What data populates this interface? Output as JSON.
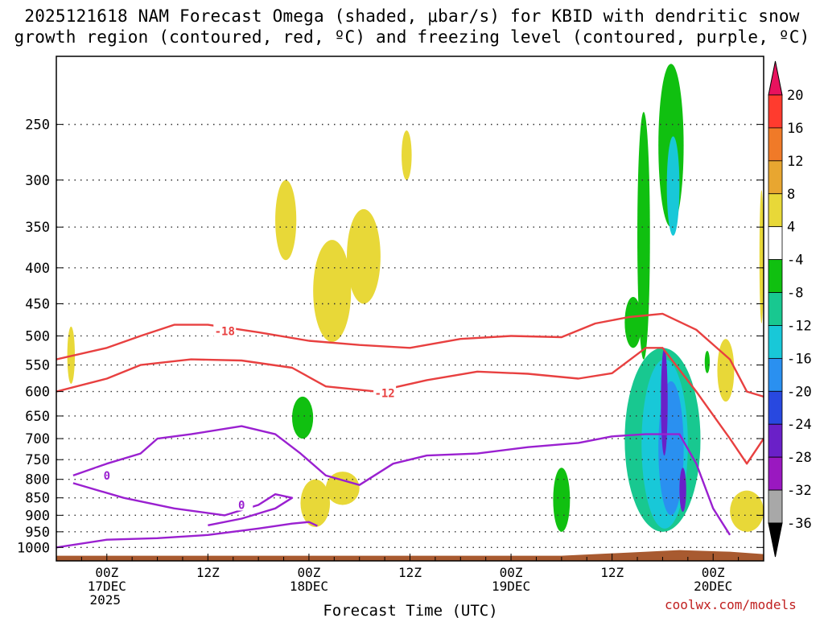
{
  "title_line1": "2025121618 NAM Forecast Omega (shaded, μbar/s) for KBID with dendritic snow",
  "title_line2": "growth region (contoured, red, ºC) and freezing level (contoured, purple, ºC)",
  "credit": "coolwx.com/models",
  "chart_data": {
    "type": "heatmap",
    "xlabel": "Forecast Time (UTC)",
    "ylabel": "",
    "x_ticks": [
      {
        "label": [
          "00Z",
          "17DEC",
          "2025"
        ],
        "hour": 6
      },
      {
        "label": [
          "12Z"
        ],
        "hour": 18
      },
      {
        "label": [
          "00Z",
          "18DEC"
        ],
        "hour": 30
      },
      {
        "label": [
          "12Z"
        ],
        "hour": 42
      },
      {
        "label": [
          "00Z",
          "19DEC"
        ],
        "hour": 54
      },
      {
        "label": [
          "12Z"
        ],
        "hour": 66
      },
      {
        "label": [
          "00Z",
          "20DEC"
        ],
        "hour": 78
      }
    ],
    "xlim_hours": [
      0,
      84
    ],
    "y_ticks": [
      250,
      300,
      350,
      400,
      450,
      500,
      550,
      600,
      650,
      700,
      750,
      800,
      850,
      900,
      950,
      1000
    ],
    "y_axis": "pressure (hPa), log scale, reversed",
    "ylim": [
      200,
      1045
    ],
    "grid": true,
    "colorbar": {
      "levels": [
        20,
        16,
        12,
        8,
        4,
        -4,
        -8,
        -12,
        -16,
        -20,
        -24,
        -28,
        -32,
        -36
      ],
      "colors": [
        "#e8125e",
        "#ff3b2e",
        "#f07a28",
        "#e8a630",
        "#e8d838",
        "#ffffff",
        "#10c010",
        "#18c890",
        "#18c8d8",
        "#2a90f0",
        "#2848e0",
        "#6a20c8",
        "#9a18c0",
        "#a8a8a8",
        "#000000"
      ]
    },
    "contours": [
      {
        "label": "-18",
        "color": "#e84040",
        "label_hour": 20,
        "label_pressure": 492,
        "path": [
          [
            0,
            540
          ],
          [
            6,
            520
          ],
          [
            10,
            500
          ],
          [
            14,
            482
          ],
          [
            18,
            482
          ],
          [
            24,
            494
          ],
          [
            30,
            508
          ],
          [
            36,
            515
          ],
          [
            42,
            520
          ],
          [
            48,
            505
          ],
          [
            54,
            500
          ],
          [
            60,
            502
          ],
          [
            64,
            480
          ],
          [
            68,
            470
          ],
          [
            72,
            465
          ],
          [
            76,
            490
          ],
          [
            80,
            540
          ],
          [
            82,
            600
          ],
          [
            84,
            610
          ]
        ]
      },
      {
        "label": "-12",
        "color": "#e84040",
        "label_hour": 39,
        "label_pressure": 603,
        "path": [
          [
            0,
            600
          ],
          [
            6,
            575
          ],
          [
            10,
            550
          ],
          [
            16,
            540
          ],
          [
            22,
            542
          ],
          [
            28,
            555
          ],
          [
            32,
            590
          ],
          [
            38,
            600
          ],
          [
            44,
            578
          ],
          [
            50,
            562
          ],
          [
            56,
            566
          ],
          [
            62,
            575
          ],
          [
            66,
            565
          ],
          [
            70,
            520
          ],
          [
            72,
            520
          ],
          [
            76,
            600
          ],
          [
            80,
            700
          ],
          [
            82,
            760
          ],
          [
            84,
            700
          ]
        ]
      },
      {
        "label": "0",
        "color": "#9a20d0",
        "label_hour": 6,
        "label_pressure": 790,
        "path": [
          [
            2,
            790
          ],
          [
            6,
            760
          ],
          [
            10,
            735
          ],
          [
            12,
            700
          ],
          [
            16,
            690
          ],
          [
            22,
            672
          ],
          [
            26,
            690
          ],
          [
            29,
            735
          ],
          [
            32,
            790
          ],
          [
            36,
            815
          ],
          [
            40,
            760
          ],
          [
            44,
            740
          ],
          [
            50,
            735
          ],
          [
            56,
            720
          ],
          [
            62,
            710
          ],
          [
            66,
            695
          ],
          [
            70,
            690
          ],
          [
            74,
            690
          ],
          [
            76,
            760
          ],
          [
            78,
            880
          ],
          [
            80,
            960
          ]
        ]
      },
      {
        "label": "0",
        "color": "#9a20d0",
        "label_hour": 22,
        "label_pressure": 870,
        "path": [
          [
            2,
            810
          ],
          [
            8,
            850
          ],
          [
            14,
            880
          ],
          [
            20,
            900
          ],
          [
            24,
            870
          ],
          [
            26,
            840
          ],
          [
            28,
            850
          ],
          [
            26,
            880
          ],
          [
            22,
            910
          ],
          [
            18,
            930
          ]
        ]
      },
      {
        "label": "",
        "color": "#9a20d0",
        "path": [
          [
            0,
            1000
          ],
          [
            6,
            975
          ],
          [
            12,
            970
          ],
          [
            18,
            960
          ],
          [
            24,
            940
          ],
          [
            28,
            925
          ],
          [
            30,
            920
          ],
          [
            31,
            932
          ]
        ]
      }
    ],
    "shaded_regions": [
      {
        "value": 6,
        "hours": [
          1.3,
          2.2
        ],
        "pressure": [
          485,
          585
        ]
      },
      {
        "value": 5,
        "hours": [
          26.0,
          28.5
        ],
        "pressure": [
          300,
          390
        ]
      },
      {
        "value": 5,
        "hours": [
          30.5,
          35.0
        ],
        "pressure": [
          365,
          510
        ]
      },
      {
        "value": 5,
        "hours": [
          34.5,
          38.5
        ],
        "pressure": [
          330,
          450
        ]
      },
      {
        "value": 6,
        "hours": [
          41.0,
          42.2
        ],
        "pressure": [
          255,
          300
        ]
      },
      {
        "value": 5,
        "hours": [
          29.0,
          32.5
        ],
        "pressure": [
          800,
          935
        ]
      },
      {
        "value": 5,
        "hours": [
          32.0,
          36.0
        ],
        "pressure": [
          780,
          870
        ]
      },
      {
        "value": 5,
        "hours": [
          80.0,
          84.0
        ],
        "pressure": [
          830,
          950
        ]
      },
      {
        "value": 6,
        "hours": [
          78.5,
          80.5
        ],
        "pressure": [
          505,
          620
        ]
      },
      {
        "value": 5,
        "hours": [
          83.5,
          84.0
        ],
        "pressure": [
          310,
          480
        ]
      },
      {
        "value": -6,
        "hours": [
          28.0,
          30.5
        ],
        "pressure": [
          610,
          700
        ]
      },
      {
        "value": -6,
        "hours": [
          59.0,
          61.0
        ],
        "pressure": [
          770,
          950
        ]
      },
      {
        "value": -6,
        "hours": [
          69.0,
          70.5
        ],
        "pressure": [
          240,
          540
        ]
      },
      {
        "value": -7,
        "hours": [
          71.5,
          74.5
        ],
        "pressure": [
          205,
          350
        ]
      },
      {
        "value": -6,
        "hours": [
          67.5,
          69.5
        ],
        "pressure": [
          440,
          520
        ]
      },
      {
        "value": -9,
        "hours": [
          67.5,
          76.5
        ],
        "pressure": [
          520,
          950
        ]
      },
      {
        "value": -14,
        "hours": [
          69.5,
          75.0
        ],
        "pressure": [
          540,
          940
        ]
      },
      {
        "value": -14,
        "hours": [
          72.5,
          74.0
        ],
        "pressure": [
          260,
          360
        ]
      },
      {
        "value": -18,
        "hours": [
          71.5,
          74.5
        ],
        "pressure": [
          580,
          900
        ]
      },
      {
        "value": -26,
        "hours": [
          71.8,
          72.6
        ],
        "pressure": [
          520,
          740
        ]
      },
      {
        "value": -26,
        "hours": [
          74.0,
          74.8
        ],
        "pressure": [
          770,
          890
        ]
      },
      {
        "value": -6,
        "hours": [
          77.0,
          77.6
        ],
        "pressure": [
          525,
          565
        ]
      }
    ],
    "terrain_top_pressure": 1025
  }
}
